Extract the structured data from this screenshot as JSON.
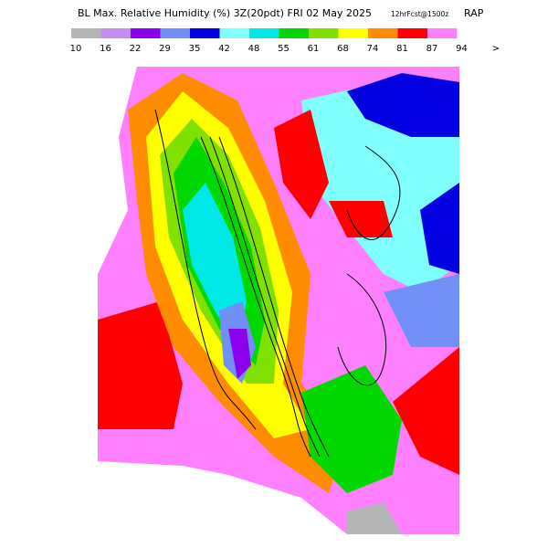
{
  "header": {
    "title": "BL Max. Relative Humidity (%)  3Z(20pdt) FRI 02 May 2025",
    "forecast": "12hrFcst@1500z",
    "model": "RAP"
  },
  "legend": {
    "bins": [
      10,
      16,
      22,
      29,
      35,
      42,
      48,
      55,
      61,
      68,
      74,
      81,
      87,
      94
    ],
    "colors": [
      "#b4b4b4",
      "#c88cf0",
      "#8c00f0",
      "#7090f8",
      "#0000e0",
      "#80ffff",
      "#00e8e8",
      "#00d800",
      "#80e000",
      "#ffff00",
      "#ff8c00",
      "#ff0000",
      "#ff80ff"
    ],
    "more": ">"
  }
}
